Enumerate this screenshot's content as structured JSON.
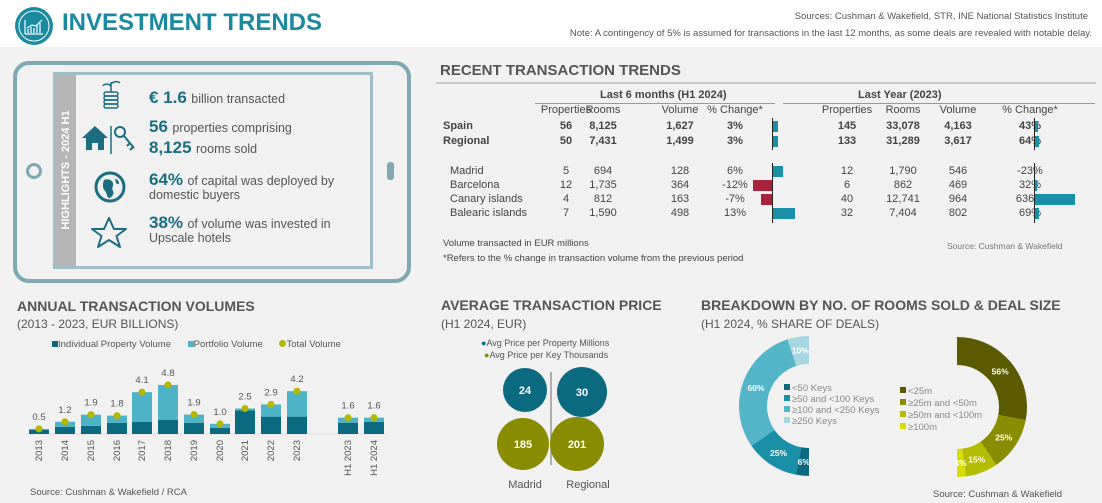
{
  "header": {
    "title": "INVESTMENT TRENDS",
    "sources": "Sources: Cushman & Wakefield, STR, INE National Statistics Institute",
    "note": "Note: A contingency of 5% is assumed for transactions in the last 12 months, as some deals are revealed with notable delay.",
    "logo_icon": "growth-chart-icon"
  },
  "highlights": {
    "label": "HIGHLIGHTS - 2024 H1",
    "items": [
      {
        "icon": "money-plant-icon",
        "big": "€ 1.6",
        "text": "billion transacted"
      },
      {
        "icon": "house-key-icon",
        "big": "56",
        "text": "properties comprising",
        "big2": "8,125",
        "text2": "rooms sold"
      },
      {
        "icon": "globe-icon",
        "big": "64%",
        "text": "of capital was deployed by",
        "text2": "domestic buyers"
      },
      {
        "icon": "star-icon",
        "big": "38%",
        "text": "of volume was invested in",
        "text2": "Upscale hotels"
      }
    ]
  },
  "recent": {
    "title": "RECENT TRANSACTION TRENDS",
    "period1": "Last 6 months (H1 2024)",
    "period2": "Last Year (2023)",
    "columns": [
      "Properties",
      "Rooms",
      "Volume",
      "% Change*"
    ],
    "rows": [
      {
        "name": "Spain",
        "bold": true,
        "h1": [
          "56",
          "8,125",
          "1,627",
          "3%"
        ],
        "h1_change": 3,
        "fy": [
          "145",
          "33,078",
          "4,163",
          "43%"
        ],
        "fy_change": 43
      },
      {
        "name": "Regional",
        "bold": true,
        "h1": [
          "50",
          "7,431",
          "1,499",
          "3%"
        ],
        "h1_change": 3,
        "fy": [
          "133",
          "31,289",
          "3,617",
          "64%"
        ],
        "fy_change": 64
      },
      {
        "name": "Madrid",
        "h1": [
          "5",
          "694",
          "128",
          "6%"
        ],
        "h1_change": 6,
        "fy": [
          "12",
          "1,790",
          "546",
          "-23%"
        ],
        "fy_change": -23
      },
      {
        "name": "Barcelona",
        "h1": [
          "12",
          "1,735",
          "364",
          "-12%"
        ],
        "h1_change": -12,
        "fy": [
          "6",
          "862",
          "469",
          "32%"
        ],
        "fy_change": 32
      },
      {
        "name": "Canary islands",
        "h1": [
          "4",
          "812",
          "163",
          "-7%"
        ],
        "h1_change": -7,
        "fy": [
          "40",
          "12,741",
          "964",
          "636%"
        ],
        "fy_change": 636
      },
      {
        "name": "Balearic islands",
        "h1": [
          "7",
          "1,590",
          "498",
          "13%"
        ],
        "h1_change": 13,
        "fy": [
          "32",
          "7,404",
          "802",
          "69%"
        ],
        "fy_change": 69
      }
    ],
    "note1": "Volume transacted in EUR millions",
    "note2": "*Refers to the % change in transaction volume from the previous period",
    "source": "Source: Cushman & Wakefield",
    "colors": {
      "positive": "#1a8fa8",
      "negative": "#a8243a"
    }
  },
  "chart_data": [
    {
      "type": "bar",
      "title": "ANNUAL TRANSACTION VOLUMES",
      "subtitle": "(2013 - 2023, EUR BILLIONS)",
      "categories": [
        "2013",
        "2014",
        "2015",
        "2016",
        "2017",
        "2018",
        "2019",
        "2020",
        "2021",
        "2022",
        "2023",
        "H1 2023",
        "H1 2024"
      ],
      "series": [
        {
          "name": "Individual Property Volume",
          "color": "#0b6a80",
          "values": [
            0.4,
            0.7,
            0.8,
            1.1,
            1.2,
            1.4,
            1.1,
            0.6,
            2.3,
            1.7,
            1.7,
            1.1,
            1.2
          ]
        },
        {
          "name": "Portfolio Volume",
          "color": "#4fb3c7",
          "values": [
            0.1,
            0.5,
            1.1,
            0.7,
            2.9,
            3.4,
            0.8,
            0.4,
            0.2,
            1.2,
            2.5,
            0.5,
            0.4
          ]
        },
        {
          "name": "Total Volume",
          "color": "#b5b800",
          "values": [
            0.5,
            1.2,
            1.9,
            1.8,
            4.1,
            4.8,
            1.9,
            1.0,
            2.5,
            2.9,
            4.2,
            1.6,
            1.6
          ]
        }
      ],
      "labels": [
        "0.5",
        "1.2",
        "1.9",
        "1.8",
        "4.1",
        "4.8",
        "1.9",
        "1.0",
        "2.5",
        "2.9",
        "4.2",
        "1.6",
        "1.6"
      ],
      "source": "Source: Cushman & Wakefield / RCA",
      "legend": "top"
    },
    {
      "type": "bubble",
      "title": "AVERAGE TRANSACTION PRICE",
      "subtitle": "(H1 2024, EUR)",
      "categories": [
        "Madrid",
        "Regional"
      ],
      "series": [
        {
          "name": "Avg Price per Property Millions",
          "color": "#0b6a80",
          "values": [
            24,
            30
          ]
        },
        {
          "name": "Avg Price per Key Thousands",
          "color": "#8a8c00",
          "values": [
            185,
            201
          ]
        }
      ]
    },
    {
      "type": "pie",
      "title": "BREAKDOWN BY NO. OF ROOMS SOLD & DEAL SIZE",
      "subtitle": "(H1 2024, % SHARE OF DEALS)",
      "source": "Source: Cushman & Wakefield",
      "rooms": [
        {
          "name": "<50 Keys",
          "value": 6,
          "color": "#0b6a80"
        },
        {
          "name": "≥50 and <100 Keys",
          "value": 25,
          "color": "#1a8fa8"
        },
        {
          "name": "≥100 and <250 Keys",
          "value": 60,
          "color": "#55b5c8"
        },
        {
          "name": "≥250 Keys",
          "value": 10,
          "color": "#a6d6e0"
        }
      ],
      "deal_size": [
        {
          "name": "<25m",
          "value": 56,
          "color": "#5a5a00"
        },
        {
          "name": "≥25m and <50m",
          "value": 25,
          "color": "#8a8c00"
        },
        {
          "name": "≥50m and <100m",
          "value": 15,
          "color": "#b4bc00"
        },
        {
          "name": "≥100m",
          "value": 4,
          "color": "#d8df00"
        }
      ]
    }
  ]
}
